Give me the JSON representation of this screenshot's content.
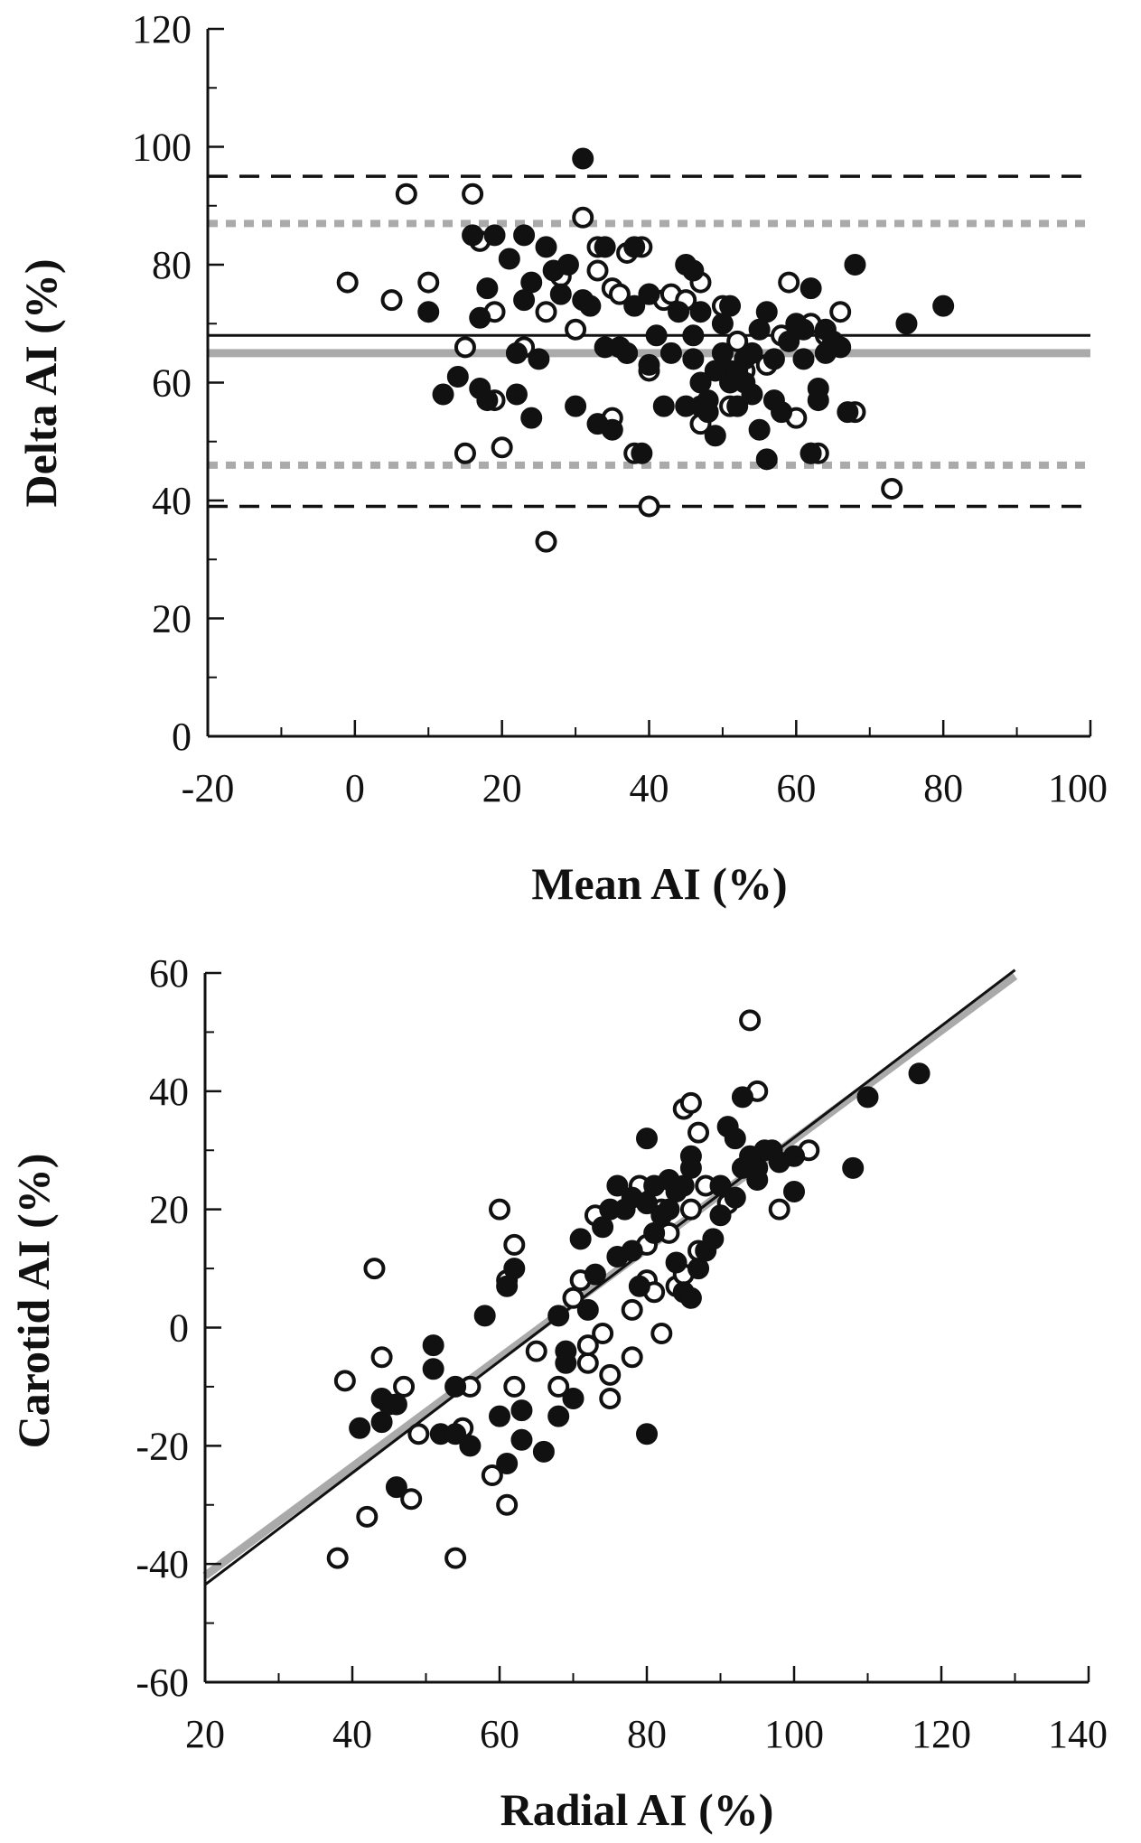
{
  "chart_data": [
    {
      "type": "scatter",
      "title": "",
      "xlabel": "Mean AI (%)",
      "ylabel": "Delta AI (%)",
      "xlim": [
        -20,
        100
      ],
      "ylim": [
        0,
        120
      ],
      "xticks": [
        "-20",
        "0",
        "20",
        "40",
        "60",
        "80",
        "100"
      ],
      "yticks": [
        "0",
        "20",
        "40",
        "60",
        "80",
        "100",
        "120"
      ],
      "grid": false,
      "reference_lines": [
        {
          "kind": "mean",
          "group": "filled",
          "value": 68,
          "style": "solid",
          "color": "#111111"
        },
        {
          "kind": "mean",
          "group": "open",
          "value": 65,
          "style": "solid",
          "color": "#aaaaaa"
        },
        {
          "kind": "upper-limit",
          "group": "filled",
          "value": 95,
          "style": "dashed",
          "color": "#111111"
        },
        {
          "kind": "lower-limit",
          "group": "filled",
          "value": 39,
          "style": "dashed",
          "color": "#111111"
        },
        {
          "kind": "upper-limit",
          "group": "open",
          "value": 87,
          "style": "dotted",
          "color": "#aaaaaa"
        },
        {
          "kind": "lower-limit",
          "group": "open",
          "value": 46,
          "style": "dotted",
          "color": "#aaaaaa"
        }
      ],
      "series": [
        {
          "marker": "filled-circle",
          "color": "#111111",
          "points": [
            [
              10,
              72
            ],
            [
              12,
              58
            ],
            [
              14,
              61
            ],
            [
              16,
              85
            ],
            [
              17,
              59
            ],
            [
              17,
              71
            ],
            [
              18,
              57
            ],
            [
              18,
              76
            ],
            [
              19,
              85
            ],
            [
              21,
              81
            ],
            [
              22,
              58
            ],
            [
              22,
              65
            ],
            [
              23,
              74
            ],
            [
              23,
              85
            ],
            [
              24,
              54
            ],
            [
              24,
              77
            ],
            [
              25,
              64
            ],
            [
              26,
              83
            ],
            [
              27,
              79
            ],
            [
              28,
              75
            ],
            [
              29,
              80
            ],
            [
              30,
              56
            ],
            [
              31,
              98
            ],
            [
              31,
              74
            ],
            [
              32,
              73
            ],
            [
              33,
              53
            ],
            [
              34,
              83
            ],
            [
              34,
              66
            ],
            [
              35,
              52
            ],
            [
              36,
              66
            ],
            [
              37,
              65
            ],
            [
              38,
              73
            ],
            [
              38,
              83
            ],
            [
              39,
              48
            ],
            [
              40,
              63
            ],
            [
              40,
              75
            ],
            [
              41,
              68
            ],
            [
              42,
              56
            ],
            [
              43,
              65
            ],
            [
              44,
              72
            ],
            [
              45,
              56
            ],
            [
              45,
              80
            ],
            [
              46,
              79
            ],
            [
              46,
              68
            ],
            [
              46,
              64
            ],
            [
              47,
              72
            ],
            [
              47,
              60
            ],
            [
              47,
              56
            ],
            [
              48,
              57
            ],
            [
              48,
              55
            ],
            [
              49,
              51
            ],
            [
              49,
              62
            ],
            [
              50,
              65
            ],
            [
              50,
              70
            ],
            [
              51,
              62
            ],
            [
              51,
              60
            ],
            [
              51,
              73
            ],
            [
              52,
              56
            ],
            [
              52,
              62
            ],
            [
              53,
              64
            ],
            [
              53,
              60
            ],
            [
              54,
              65
            ],
            [
              54,
              58
            ],
            [
              55,
              52
            ],
            [
              55,
              69
            ],
            [
              56,
              47
            ],
            [
              56,
              72
            ],
            [
              57,
              64
            ],
            [
              57,
              57
            ],
            [
              58,
              55
            ],
            [
              59,
              67
            ],
            [
              60,
              70
            ],
            [
              61,
              64
            ],
            [
              61,
              69
            ],
            [
              62,
              76
            ],
            [
              62,
              48
            ],
            [
              63,
              59
            ],
            [
              63,
              57
            ],
            [
              64,
              65
            ],
            [
              64,
              69
            ],
            [
              65,
              67
            ],
            [
              66,
              66
            ],
            [
              67,
              55
            ],
            [
              68,
              80
            ],
            [
              75,
              70
            ],
            [
              80,
              73
            ]
          ]
        },
        {
          "marker": "open-circle",
          "color": "#111111",
          "points": [
            [
              -1,
              77
            ],
            [
              5,
              74
            ],
            [
              7,
              92
            ],
            [
              10,
              77
            ],
            [
              15,
              66
            ],
            [
              15,
              48
            ],
            [
              16,
              92
            ],
            [
              17,
              84
            ],
            [
              19,
              57
            ],
            [
              19,
              72
            ],
            [
              20,
              49
            ],
            [
              23,
              66
            ],
            [
              26,
              72
            ],
            [
              26,
              33
            ],
            [
              28,
              78
            ],
            [
              30,
              69
            ],
            [
              31,
              88
            ],
            [
              33,
              83
            ],
            [
              33,
              79
            ],
            [
              35,
              54
            ],
            [
              35,
              76
            ],
            [
              36,
              75
            ],
            [
              37,
              82
            ],
            [
              37,
              65
            ],
            [
              38,
              48
            ],
            [
              39,
              83
            ],
            [
              40,
              75
            ],
            [
              40,
              62
            ],
            [
              40,
              39
            ],
            [
              42,
              74
            ],
            [
              43,
              75
            ],
            [
              45,
              74
            ],
            [
              47,
              77
            ],
            [
              47,
              53
            ],
            [
              50,
              73
            ],
            [
              51,
              56
            ],
            [
              52,
              67
            ],
            [
              53,
              62
            ],
            [
              56,
              63
            ],
            [
              58,
              68
            ],
            [
              59,
              77
            ],
            [
              60,
              54
            ],
            [
              62,
              70
            ],
            [
              62,
              48
            ],
            [
              63,
              48
            ],
            [
              64,
              68
            ],
            [
              66,
              72
            ],
            [
              68,
              55
            ],
            [
              73,
              42
            ]
          ]
        }
      ]
    },
    {
      "type": "scatter",
      "title": "",
      "xlabel": "Radial AI (%)",
      "ylabel": "Carotid AI (%)",
      "xlim": [
        20,
        140
      ],
      "ylim": [
        -60,
        60
      ],
      "xticks": [
        "20",
        "40",
        "60",
        "80",
        "100",
        "120",
        "140"
      ],
      "yticks": [
        "-60",
        "-40",
        "-20",
        "0",
        "20",
        "40",
        "60"
      ],
      "grid": false,
      "regression_lines": [
        {
          "group": "filled",
          "from": [
            20,
            -43.5
          ],
          "to": [
            130,
            60.5
          ],
          "style": "solid",
          "color": "#111111"
        },
        {
          "group": "open",
          "from": [
            20,
            -42
          ],
          "to": [
            130,
            59.5
          ],
          "style": "solid",
          "color": "#aaaaaa"
        }
      ],
      "series": [
        {
          "marker": "filled-circle",
          "color": "#111111",
          "points": [
            [
              41,
              -17
            ],
            [
              44,
              -12
            ],
            [
              44,
              -16
            ],
            [
              45,
              -13
            ],
            [
              46,
              -27
            ],
            [
              46,
              -13
            ],
            [
              51,
              -3
            ],
            [
              51,
              -7
            ],
            [
              52,
              -18
            ],
            [
              54,
              -18
            ],
            [
              54,
              -10
            ],
            [
              56,
              -20
            ],
            [
              58,
              2
            ],
            [
              60,
              -15
            ],
            [
              61,
              7
            ],
            [
              61,
              -23
            ],
            [
              62,
              10
            ],
            [
              63,
              -19
            ],
            [
              63,
              -14
            ],
            [
              66,
              -21
            ],
            [
              68,
              2
            ],
            [
              68,
              -15
            ],
            [
              69,
              -4
            ],
            [
              69,
              -6
            ],
            [
              70,
              -12
            ],
            [
              71,
              15
            ],
            [
              72,
              3
            ],
            [
              73,
              9
            ],
            [
              74,
              17
            ],
            [
              75,
              20
            ],
            [
              76,
              24
            ],
            [
              76,
              12
            ],
            [
              77,
              20
            ],
            [
              78,
              22
            ],
            [
              78,
              13
            ],
            [
              79,
              7
            ],
            [
              80,
              32
            ],
            [
              80,
              -18
            ],
            [
              80,
              21
            ],
            [
              81,
              24
            ],
            [
              81,
              16
            ],
            [
              82,
              19
            ],
            [
              83,
              25
            ],
            [
              83,
              20
            ],
            [
              84,
              11
            ],
            [
              84,
              23
            ],
            [
              85,
              24
            ],
            [
              85,
              6
            ],
            [
              86,
              27
            ],
            [
              86,
              5
            ],
            [
              86,
              29
            ],
            [
              87,
              10
            ],
            [
              88,
              13
            ],
            [
              89,
              15
            ],
            [
              90,
              24
            ],
            [
              90,
              19
            ],
            [
              91,
              34
            ],
            [
              92,
              22
            ],
            [
              92,
              32
            ],
            [
              93,
              27
            ],
            [
              93,
              39
            ],
            [
              94,
              29
            ],
            [
              95,
              25
            ],
            [
              95,
              27
            ],
            [
              96,
              30
            ],
            [
              97,
              30
            ],
            [
              98,
              28
            ],
            [
              100,
              23
            ],
            [
              100,
              29
            ],
            [
              108,
              27
            ],
            [
              110,
              39
            ],
            [
              117,
              43
            ]
          ]
        },
        {
          "marker": "open-circle",
          "color": "#111111",
          "points": [
            [
              38,
              -39
            ],
            [
              39,
              -9
            ],
            [
              42,
              -32
            ],
            [
              43,
              10
            ],
            [
              44,
              -5
            ],
            [
              47,
              -10
            ],
            [
              48,
              -29
            ],
            [
              49,
              -18
            ],
            [
              54,
              -39
            ],
            [
              55,
              -17
            ],
            [
              56,
              -10
            ],
            [
              59,
              -25
            ],
            [
              60,
              20
            ],
            [
              61,
              -30
            ],
            [
              61,
              8
            ],
            [
              62,
              14
            ],
            [
              62,
              -10
            ],
            [
              65,
              -4
            ],
            [
              68,
              -10
            ],
            [
              70,
              5
            ],
            [
              71,
              8
            ],
            [
              72,
              -6
            ],
            [
              72,
              -3
            ],
            [
              73,
              19
            ],
            [
              74,
              -1
            ],
            [
              75,
              -8
            ],
            [
              75,
              -12
            ],
            [
              78,
              -5
            ],
            [
              78,
              3
            ],
            [
              79,
              24
            ],
            [
              80,
              14
            ],
            [
              80,
              8
            ],
            [
              81,
              6
            ],
            [
              82,
              -1
            ],
            [
              82,
              20
            ],
            [
              83,
              16
            ],
            [
              84,
              7
            ],
            [
              85,
              9
            ],
            [
              85,
              37
            ],
            [
              86,
              20
            ],
            [
              86,
              38
            ],
            [
              87,
              13
            ],
            [
              87,
              33
            ],
            [
              88,
              24
            ],
            [
              91,
              21
            ],
            [
              94,
              52
            ],
            [
              95,
              40
            ],
            [
              98,
              20
            ],
            [
              102,
              30
            ]
          ]
        }
      ]
    }
  ]
}
